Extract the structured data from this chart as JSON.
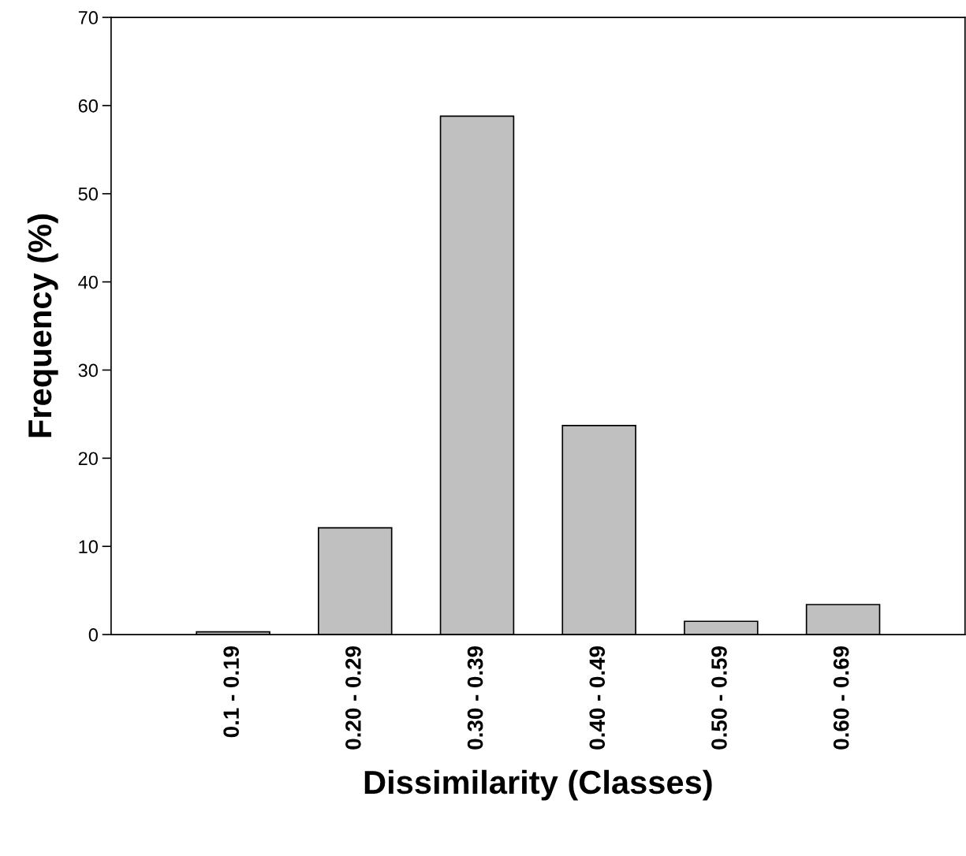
{
  "chart_data": {
    "type": "bar",
    "xlabel": "Dissimilarity (Classes)",
    "ylabel": "Frequency (%)",
    "categories": [
      "0.1 - 0.19",
      "0.20 - 0.29",
      "0.30 - 0.39",
      "0.40 - 0.49",
      "0.50 - 0.59",
      "0.60 - 0.69"
    ],
    "values": [
      0.3,
      12.1,
      58.8,
      23.7,
      1.5,
      3.4
    ],
    "color": "#c0c0c0",
    "ylim": [
      0,
      70
    ],
    "yticks": [
      0,
      10,
      20,
      30,
      40,
      50,
      60,
      70
    ],
    "grid": false,
    "legend": false
  }
}
